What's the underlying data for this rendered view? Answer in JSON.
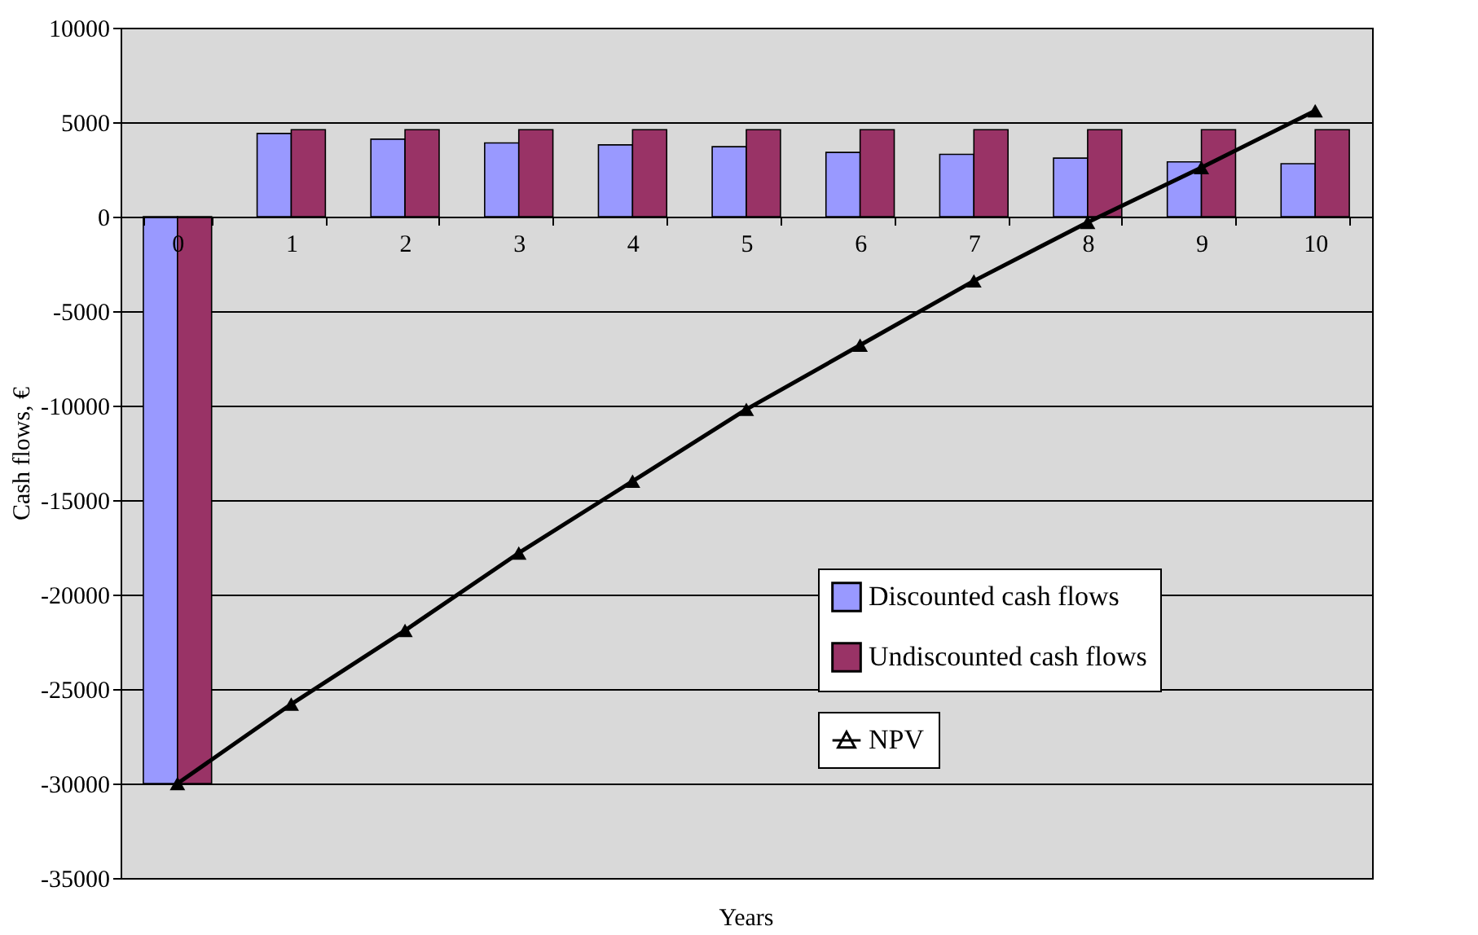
{
  "chart_data": {
    "type": "bar",
    "xlabel": "Years",
    "ylabel": "Cash flows,  €",
    "categories": [
      "0",
      "1",
      "2",
      "3",
      "4",
      "5",
      "6",
      "7",
      "8",
      "9",
      "10"
    ],
    "series": [
      {
        "name": "Discounted cash flows",
        "color": "#9999ff",
        "values": [
          -30000,
          4400,
          4100,
          3900,
          3800,
          3700,
          3400,
          3300,
          3100,
          2900,
          2800
        ]
      },
      {
        "name": "Undiscounted cash flows",
        "color": "#993366",
        "values": [
          -30000,
          4600,
          4600,
          4600,
          4600,
          4600,
          4600,
          4600,
          4600,
          4600,
          4600
        ]
      },
      {
        "name": "NPV",
        "type": "line",
        "color": "#000000",
        "marker": "triangle",
        "line_style": "solid",
        "values": [
          -30000,
          -25800,
          -21900,
          -17800,
          -14000,
          -10200,
          -6800,
          -3400,
          -300,
          2600,
          5600
        ]
      }
    ],
    "ylim": [
      -35000,
      10000
    ],
    "yticks": [
      -35000,
      -30000,
      -25000,
      -20000,
      -15000,
      -10000,
      -5000,
      0,
      5000,
      10000
    ],
    "grid": "y",
    "legend": "bottom right"
  }
}
